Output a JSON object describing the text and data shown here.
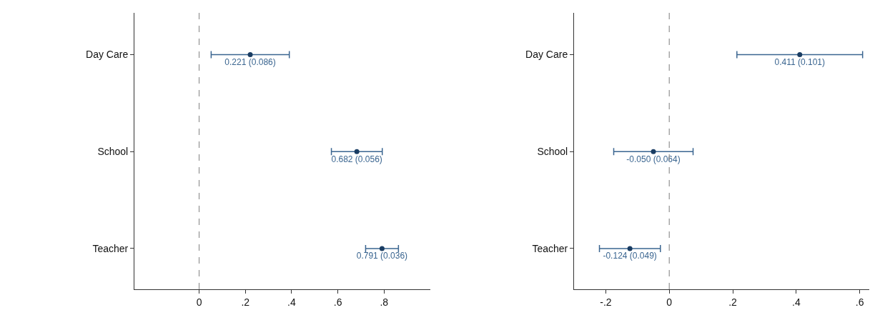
{
  "chart_data": [
    {
      "type": "scatter",
      "orientation": "horizontal",
      "categories": [
        "Day Care",
        "School",
        "Teacher"
      ],
      "values": [
        0.221,
        0.682,
        0.791
      ],
      "errors": [
        0.169,
        0.11,
        0.071
      ],
      "value_labels": [
        "0.221 (0.086)",
        "0.682 (0.056)",
        "0.791 (0.036)"
      ],
      "color": "#1a3d63",
      "marker": "circle",
      "xlim": [
        -0.28,
        1.0
      ],
      "xticks": [
        0,
        {
          "value": 0.2,
          "label": ".2"
        },
        {
          "value": 0.4,
          "label": ".4"
        },
        {
          "value": 0.6,
          "label": ".6"
        },
        {
          "value": 0.8,
          "label": ".8"
        }
      ],
      "ref_lines": [
        {
          "axis": "x",
          "value": 0,
          "color": "#999999",
          "line_style": "dashed"
        }
      ]
    },
    {
      "type": "scatter",
      "orientation": "horizontal",
      "categories": [
        "Day Care",
        "School",
        "Teacher"
      ],
      "values": [
        0.411,
        -0.05,
        -0.124
      ],
      "errors": [
        0.198,
        0.125,
        0.096
      ],
      "value_labels": [
        "0.411 (0.101)",
        "-0.050 (0.064)",
        "-0.124 (0.049)"
      ],
      "color": "#1a3d63",
      "marker": "circle",
      "xlim": [
        -0.3,
        0.63
      ],
      "xticks": [
        {
          "value": -0.2,
          "label": "-.2"
        },
        0,
        {
          "value": 0.2,
          "label": ".2"
        },
        {
          "value": 0.4,
          "label": ".4"
        },
        {
          "value": 0.6,
          "label": ".6"
        }
      ],
      "ref_lines": [
        {
          "axis": "x",
          "value": 0,
          "color": "#999999",
          "line_style": "dashed"
        }
      ]
    }
  ]
}
